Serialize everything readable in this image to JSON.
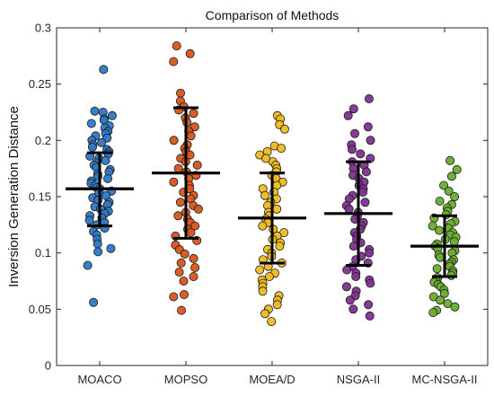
{
  "chart_data": {
    "type": "scatter",
    "title": "Comparison of Methods",
    "xlabel": "",
    "ylabel": "Inversion Generation Distance",
    "ylim": [
      0,
      0.3
    ],
    "yticks": [
      "0",
      "0.05",
      "0.1",
      "0.15",
      "0.2",
      "0.25",
      "0.3"
    ],
    "categories": [
      "MOACO",
      "MOPSO",
      "MOEA/D",
      "NSGA-II",
      "MC-NSGA-II"
    ],
    "grid": false,
    "colors": [
      "#2e78c4",
      "#d6551a",
      "#efba1f",
      "#7e3190",
      "#6aad2e"
    ],
    "groups": [
      {
        "name": "MOACO",
        "mean": 0.157,
        "upper": 0.189,
        "lower": 0.124,
        "values": [
          0.263,
          0.226,
          0.225,
          0.222,
          0.219,
          0.218,
          0.215,
          0.213,
          0.211,
          0.208,
          0.206,
          0.204,
          0.202,
          0.2,
          0.198,
          0.196,
          0.194,
          0.192,
          0.19,
          0.188,
          0.186,
          0.184,
          0.182,
          0.18,
          0.178,
          0.176,
          0.174,
          0.172,
          0.17,
          0.168,
          0.166,
          0.164,
          0.162,
          0.16,
          0.158,
          0.157,
          0.155,
          0.153,
          0.151,
          0.149,
          0.147,
          0.145,
          0.143,
          0.141,
          0.139,
          0.137,
          0.135,
          0.133,
          0.131,
          0.129,
          0.127,
          0.125,
          0.122,
          0.119,
          0.116,
          0.112,
          0.108,
          0.104,
          0.101,
          0.089,
          0.056
        ]
      },
      {
        "name": "MOPSO",
        "mean": 0.171,
        "upper": 0.229,
        "lower": 0.113,
        "values": [
          0.284,
          0.277,
          0.27,
          0.242,
          0.235,
          0.23,
          0.227,
          0.224,
          0.22,
          0.216,
          0.212,
          0.208,
          0.204,
          0.2,
          0.196,
          0.193,
          0.19,
          0.187,
          0.184,
          0.181,
          0.178,
          0.175,
          0.172,
          0.169,
          0.166,
          0.163,
          0.16,
          0.157,
          0.154,
          0.151,
          0.148,
          0.145,
          0.142,
          0.139,
          0.136,
          0.133,
          0.13,
          0.127,
          0.124,
          0.121,
          0.118,
          0.115,
          0.111,
          0.107,
          0.103,
          0.099,
          0.095,
          0.091,
          0.087,
          0.083,
          0.079,
          0.075,
          0.063,
          0.061,
          0.049
        ]
      },
      {
        "name": "MOEA/D",
        "mean": 0.131,
        "upper": 0.171,
        "lower": 0.091,
        "values": [
          0.222,
          0.219,
          0.214,
          0.21,
          0.195,
          0.193,
          0.19,
          0.187,
          0.184,
          0.181,
          0.178,
          0.175,
          0.172,
          0.169,
          0.166,
          0.163,
          0.16,
          0.157,
          0.154,
          0.151,
          0.148,
          0.145,
          0.142,
          0.139,
          0.136,
          0.133,
          0.13,
          0.127,
          0.124,
          0.121,
          0.118,
          0.115,
          0.112,
          0.109,
          0.106,
          0.103,
          0.1,
          0.097,
          0.094,
          0.091,
          0.088,
          0.085,
          0.082,
          0.079,
          0.076,
          0.073,
          0.07,
          0.066,
          0.062,
          0.058,
          0.054,
          0.05,
          0.046,
          0.039
        ]
      },
      {
        "name": "NSGA-II",
        "mean": 0.135,
        "upper": 0.181,
        "lower": 0.089,
        "values": [
          0.237,
          0.228,
          0.222,
          0.212,
          0.206,
          0.2,
          0.196,
          0.192,
          0.188,
          0.184,
          0.181,
          0.178,
          0.175,
          0.172,
          0.169,
          0.166,
          0.163,
          0.16,
          0.157,
          0.154,
          0.151,
          0.148,
          0.145,
          0.142,
          0.139,
          0.136,
          0.133,
          0.13,
          0.127,
          0.124,
          0.121,
          0.118,
          0.115,
          0.112,
          0.109,
          0.106,
          0.103,
          0.1,
          0.097,
          0.094,
          0.091,
          0.088,
          0.085,
          0.082,
          0.079,
          0.076,
          0.073,
          0.07,
          0.066,
          0.062,
          0.058,
          0.054,
          0.05,
          0.044
        ]
      },
      {
        "name": "MC-NSGA-II",
        "mean": 0.106,
        "upper": 0.133,
        "lower": 0.079,
        "values": [
          0.182,
          0.174,
          0.168,
          0.16,
          0.155,
          0.15,
          0.146,
          0.143,
          0.14,
          0.137,
          0.134,
          0.131,
          0.128,
          0.126,
          0.124,
          0.122,
          0.12,
          0.118,
          0.116,
          0.114,
          0.112,
          0.11,
          0.108,
          0.106,
          0.104,
          0.102,
          0.1,
          0.098,
          0.096,
          0.094,
          0.092,
          0.09,
          0.088,
          0.086,
          0.084,
          0.082,
          0.08,
          0.078,
          0.076,
          0.074,
          0.072,
          0.07,
          0.067,
          0.064,
          0.061,
          0.058,
          0.055,
          0.052,
          0.049,
          0.047
        ]
      }
    ]
  }
}
